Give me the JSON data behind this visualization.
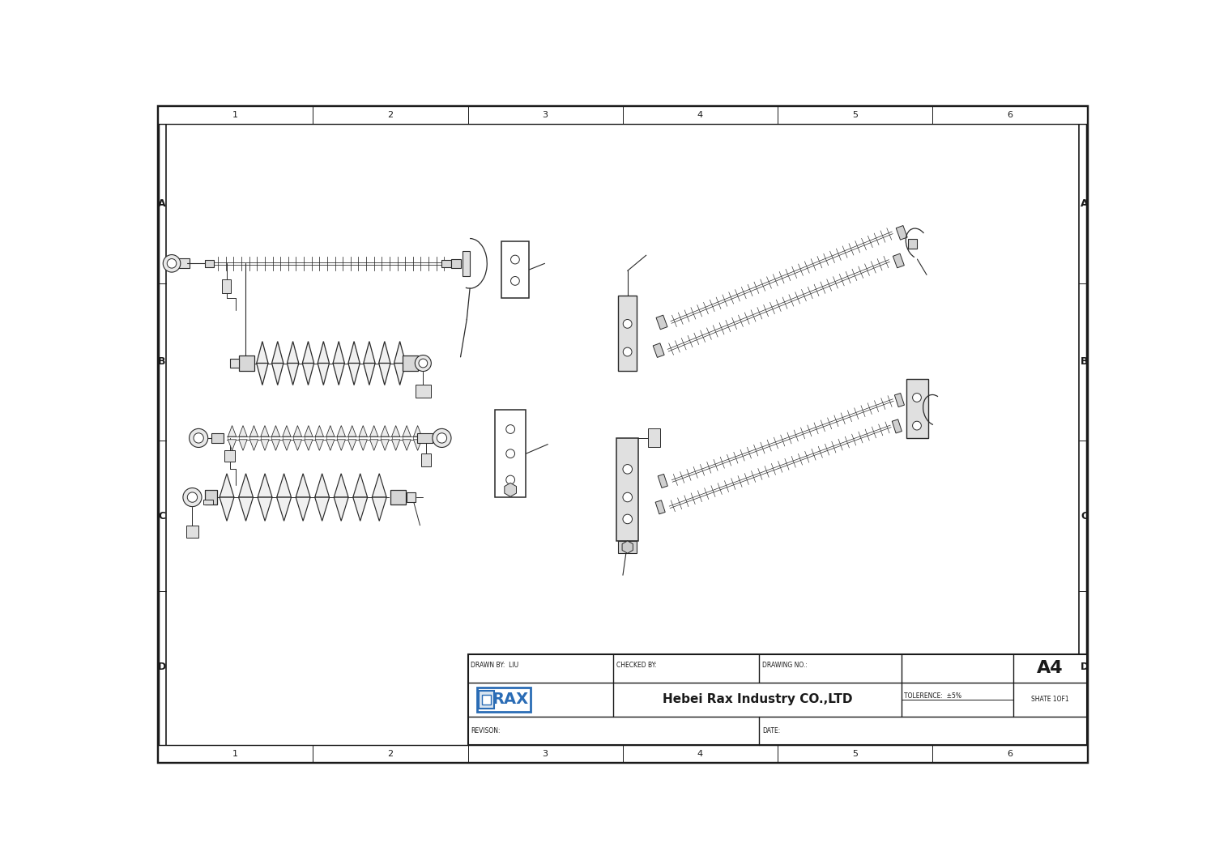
{
  "background_color": "#ffffff",
  "border_color": "#1a1a1a",
  "line_color": "#2a2a2a",
  "blue_color": "#2a6cb5",
  "drawn_by": "DRAWN BY:  LIU",
  "checked_by": "CHECKED BY:",
  "drawing_no": "DRAWING NO.:",
  "sheet_size": "A4",
  "tolerance": "TOLERENCE:  ±5%",
  "company": "Hebei Rax Industry CO.,LTD",
  "sheet_no": "SHATE 1OF1",
  "revison_label": "REVISON:",
  "date_label": "DATE:"
}
